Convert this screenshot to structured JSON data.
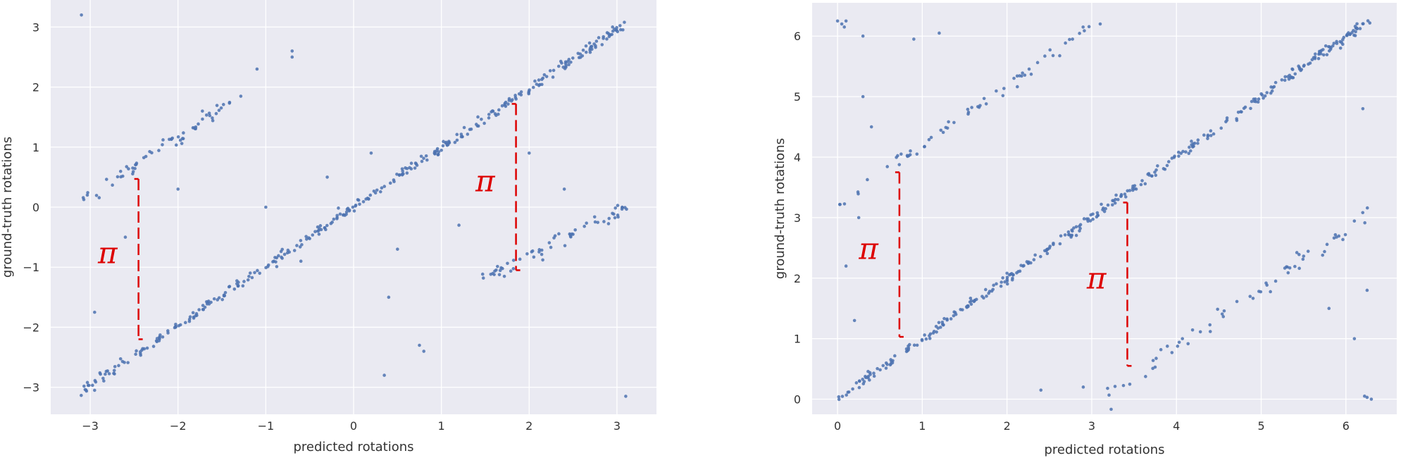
{
  "colors": {
    "panel_bg": "#eaeaf2",
    "grid": "#ffffff",
    "points": "#4c72b0",
    "annotation": "#dd0000"
  },
  "chart_data": [
    {
      "type": "scatter",
      "xlabel": "predicted rotations",
      "ylabel": "ground-truth rotations",
      "xlim": [
        -3.45,
        3.45
      ],
      "ylim": [
        -3.45,
        3.45
      ],
      "xticks": [
        -3,
        -2,
        -1,
        0,
        1,
        2,
        3
      ],
      "yticks": [
        -3,
        -2,
        -1,
        0,
        1,
        2,
        3
      ],
      "xtick_labels": [
        "−3",
        "−2",
        "−1",
        "0",
        "1",
        "2",
        "3"
      ],
      "ytick_labels": [
        "−3",
        "−2",
        "−1",
        "0",
        "1",
        "2",
        "3"
      ],
      "grid": true,
      "series": [
        {
          "segments": [
            {
              "from": [
                -3.1,
                -3.05
              ],
              "to": [
                3.1,
                3.05
              ],
              "count": 340,
              "spread": 0.04
            },
            {
              "from": [
                -3.1,
                0.1
              ],
              "to": [
                -1.3,
                1.85
              ],
              "count": 60,
              "spread": 0.06
            },
            {
              "from": [
                1.5,
                -1.2
              ],
              "to": [
                3.1,
                0.0
              ],
              "count": 60,
              "spread": 0.07
            }
          ],
          "outliers": [
            [
              -3.1,
              3.2
            ],
            [
              -0.7,
              2.6
            ],
            [
              -0.7,
              2.5
            ],
            [
              -1.1,
              2.3
            ],
            [
              0.35,
              -2.8
            ],
            [
              3.1,
              -3.15
            ],
            [
              2.95,
              3.0
            ],
            [
              -2.95,
              -1.75
            ],
            [
              -2.95,
              -3.05
            ],
            [
              0.75,
              -2.3
            ],
            [
              0.8,
              -2.4
            ],
            [
              -1.0,
              0.0
            ],
            [
              -2.6,
              -0.5
            ],
            [
              2.0,
              0.9
            ],
            [
              0.2,
              0.9
            ],
            [
              -0.6,
              -0.9
            ],
            [
              0.5,
              -0.7
            ],
            [
              1.2,
              -0.3
            ],
            [
              2.4,
              0.3
            ],
            [
              -2.0,
              0.3
            ],
            [
              0.4,
              -1.5
            ],
            [
              -0.3,
              0.5
            ]
          ]
        }
      ],
      "annotations": [
        {
          "text": "π",
          "x": -2.45,
          "y_from": 0.47,
          "y_to": -2.2
        },
        {
          "text": "π",
          "x": 1.85,
          "y_from": 1.72,
          "y_to": -1.05
        }
      ]
    },
    {
      "type": "scatter",
      "xlabel": "predicted rotations",
      "ylabel": "ground-truth rotations",
      "xlim": [
        -0.3,
        6.6
      ],
      "ylim": [
        -0.25,
        6.55
      ],
      "xticks": [
        0,
        1,
        2,
        3,
        4,
        5,
        6
      ],
      "yticks": [
        0,
        1,
        2,
        3,
        4,
        5,
        6
      ],
      "xtick_labels": [
        "0",
        "1",
        "2",
        "3",
        "4",
        "5",
        "6"
      ],
      "ytick_labels": [
        "0",
        "1",
        "2",
        "3",
        "4",
        "5",
        "6"
      ],
      "grid": true,
      "series": [
        {
          "segments": [
            {
              "from": [
                0.0,
                0.0
              ],
              "to": [
                6.28,
                6.28
              ],
              "count": 340,
              "spread": 0.04
            },
            {
              "from": [
                0.0,
                3.2
              ],
              "to": [
                3.1,
                6.28
              ],
              "count": 60,
              "spread": 0.06
            },
            {
              "from": [
                3.2,
                0.05
              ],
              "to": [
                6.28,
                3.1
              ],
              "count": 60,
              "spread": 0.07
            }
          ],
          "outliers": [
            [
              0.0,
              6.25
            ],
            [
              0.05,
              6.2
            ],
            [
              0.1,
              6.25
            ],
            [
              0.08,
              6.15
            ],
            [
              6.25,
              0.03
            ],
            [
              6.3,
              0.0
            ],
            [
              6.22,
              0.05
            ],
            [
              0.3,
              6.0
            ],
            [
              0.9,
              5.95
            ],
            [
              1.2,
              6.05
            ],
            [
              6.2,
              4.8
            ],
            [
              6.1,
              1.0
            ],
            [
              6.25,
              1.8
            ],
            [
              0.1,
              2.2
            ],
            [
              0.2,
              1.3
            ],
            [
              0.4,
              4.5
            ],
            [
              3.1,
              6.2
            ],
            [
              2.4,
              0.15
            ],
            [
              2.9,
              0.2
            ],
            [
              5.8,
              1.5
            ],
            [
              0.25,
              3.0
            ],
            [
              0.3,
              5.0
            ]
          ]
        }
      ],
      "annotations": [
        {
          "text": "π",
          "x": 0.73,
          "y_from": 3.75,
          "y_to": 1.03
        },
        {
          "text": "π",
          "x": 3.42,
          "y_from": 3.25,
          "y_to": 0.55
        }
      ]
    }
  ]
}
